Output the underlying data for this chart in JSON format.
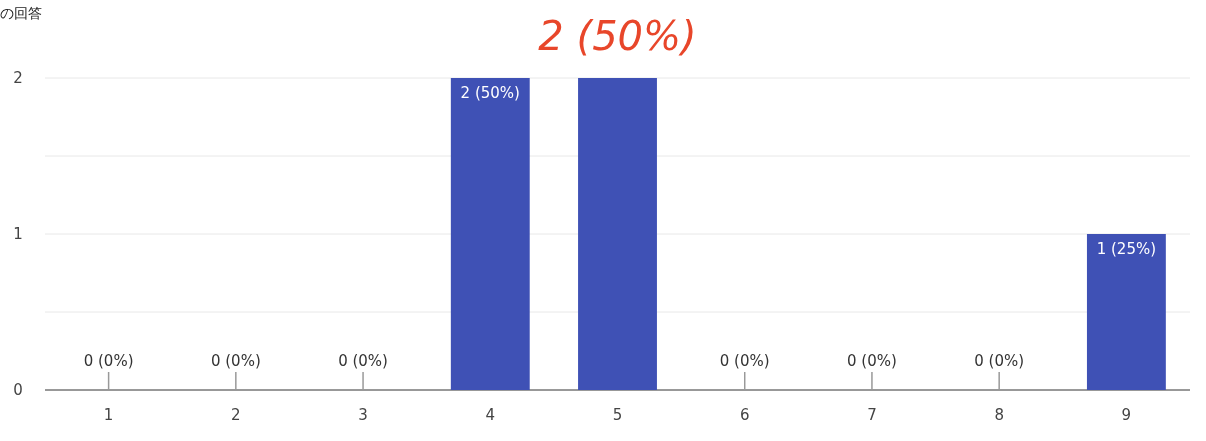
{
  "chart_data": {
    "type": "bar",
    "title": "の回答",
    "categories": [
      "1",
      "2",
      "3",
      "4",
      "5",
      "6",
      "7",
      "8",
      "9"
    ],
    "values": [
      0,
      0,
      0,
      2,
      2,
      0,
      0,
      0,
      1
    ],
    "value_labels": [
      "0 (0%)",
      "0 (0%)",
      "0 (0%)",
      "2 (50%)",
      null,
      "0 (0%)",
      "0 (0%)",
      "0 (0%)",
      "1 (25%)"
    ],
    "color": "#3f51b5",
    "ylim": [
      0,
      2
    ],
    "yticks": [
      0,
      {
        "value": 0.5,
        "label": null
      },
      1,
      {
        "value": 1.5,
        "label": null
      },
      2
    ],
    "grid": "y",
    "annotations": [
      {
        "text": "2 (50%)",
        "x": "5",
        "y": 2
      }
    ]
  }
}
